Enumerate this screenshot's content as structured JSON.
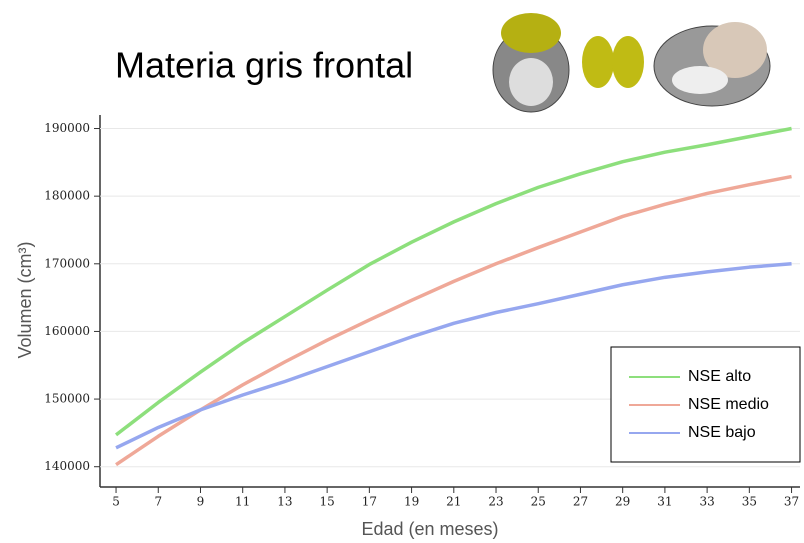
{
  "chart_data": {
    "type": "line",
    "title": "Materia gris frontal",
    "x_label": "Edad (en meses)",
    "y_label": "Volumen (cm³)",
    "x": [
      5,
      7,
      9,
      11,
      13,
      15,
      17,
      19,
      21,
      23,
      25,
      27,
      29,
      31,
      33,
      35,
      37
    ],
    "series": [
      {
        "name": "NSE alto",
        "color": "#8ddf7c",
        "values": [
          144700,
          149500,
          154000,
          158300,
          162200,
          166100,
          169900,
          173200,
          176200,
          178900,
          181300,
          183300,
          185100,
          186500,
          187600,
          188800,
          190000
        ]
      },
      {
        "name": "NSE medio",
        "color": "#efa898",
        "values": [
          140300,
          144500,
          148400,
          152100,
          155500,
          158700,
          161700,
          164600,
          167400,
          170000,
          172400,
          174700,
          177000,
          178800,
          180400,
          181700,
          182900
        ]
      },
      {
        "name": "NSE bajo",
        "color": "#96a7ef",
        "values": [
          142800,
          145800,
          148400,
          150600,
          152600,
          154800,
          157000,
          159200,
          161200,
          162800,
          164100,
          165500,
          166900,
          168000,
          168800,
          169500,
          170000
        ]
      }
    ],
    "xlim": [
      4.24,
      37.4
    ],
    "ylim": [
      137000,
      192000
    ],
    "xticks": [
      5,
      7,
      9,
      11,
      13,
      15,
      17,
      19,
      21,
      23,
      25,
      27,
      29,
      31,
      33,
      35,
      37
    ],
    "yticks": [
      140000,
      150000,
      160000,
      170000,
      180000,
      190000
    ],
    "grid": true,
    "legend": "lower right"
  }
}
